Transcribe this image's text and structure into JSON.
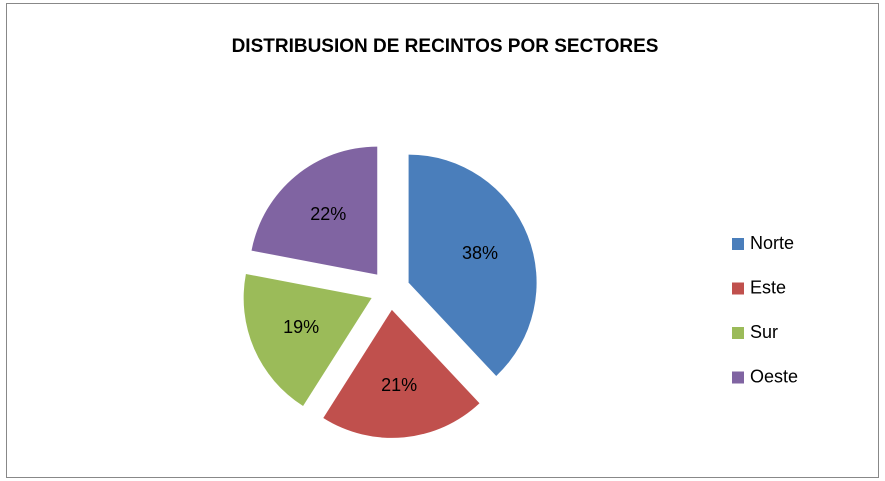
{
  "chart_data": {
    "type": "pie",
    "title": "DISTRIBUSION DE RECINTOS POR SECTORES",
    "categories": [
      "Norte",
      "Este",
      "Sur",
      "Oeste"
    ],
    "values": [
      38,
      21,
      19,
      22
    ],
    "value_labels": [
      "38%",
      "21%",
      "19%",
      "22%"
    ],
    "colors": [
      "#4a7ebb",
      "#c0504d",
      "#9bbb59",
      "#8064a2"
    ],
    "legend": "right"
  }
}
